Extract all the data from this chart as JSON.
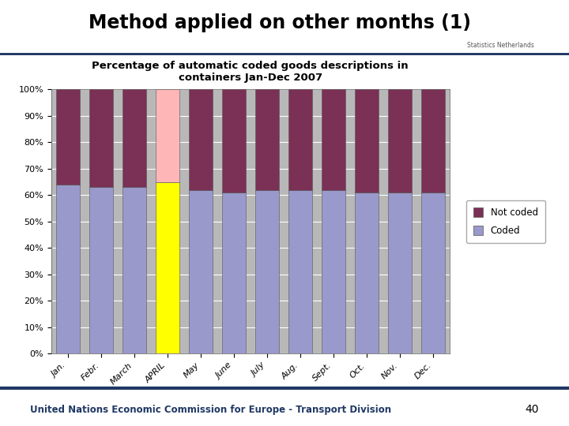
{
  "months": [
    "Jan.",
    "Febr.",
    "March",
    "APRIL",
    "May",
    "June",
    "July",
    "Aug.",
    "Sept.",
    "Oct.",
    "Nov.",
    "Dec."
  ],
  "coded": [
    64,
    63,
    63,
    65,
    62,
    61,
    62,
    62,
    62,
    61,
    61,
    61
  ],
  "not_coded": [
    36,
    37,
    37,
    35,
    38,
    39,
    38,
    38,
    38,
    39,
    39,
    39
  ],
  "coded_colors": [
    "#9999cc",
    "#9999cc",
    "#9999cc",
    "#ffff00",
    "#9999cc",
    "#9999cc",
    "#9999cc",
    "#9999cc",
    "#9999cc",
    "#9999cc",
    "#9999cc",
    "#9999cc"
  ],
  "not_coded_colors": [
    "#7b3055",
    "#7b3055",
    "#7b3055",
    "#ffb6b6",
    "#7b3055",
    "#7b3055",
    "#7b3055",
    "#7b3055",
    "#7b3055",
    "#7b3055",
    "#7b3055",
    "#7b3055"
  ],
  "chart_title": "Percentage of automatic coded goods descriptions in\ncontainers Jan-Dec 2007",
  "slide_title": "Method applied on other months (1)",
  "footer": "United Nations Economic Commission for Europe - Transport Division",
  "page_num": "40",
  "legend_not_coded": "Not coded",
  "legend_coded": "Coded",
  "slide_bg": "#ffffff",
  "content_bg": "#dce9f5",
  "chart_bg": "#ffffff",
  "plot_bg_color": "#b8b8b8",
  "header_line_color": "#1f3864",
  "footer_line_color": "#1f3864",
  "footer_text_color": "#1f3864",
  "title_color": "#000000"
}
